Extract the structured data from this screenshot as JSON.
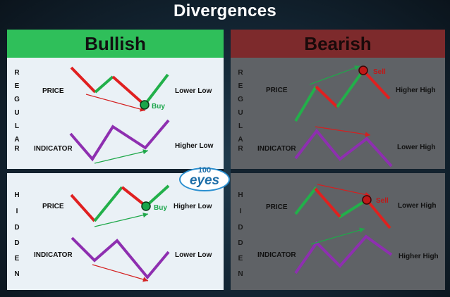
{
  "title": "Divergences",
  "watermark": {
    "number": "100",
    "text": "eyes"
  },
  "bullish": {
    "header": "Bullish",
    "regular": {
      "side_letters": [
        "R",
        "E",
        "G",
        "U",
        "L",
        "A",
        "R"
      ],
      "price_label": "PRICE",
      "indicator_label": "INDICATOR",
      "price_result": "Lower Low",
      "indicator_result": "Higher Low",
      "signal": "Buy"
    },
    "hidden": {
      "side_letters": [
        "H",
        "I",
        "D",
        "D",
        "E",
        "N"
      ],
      "price_label": "PRICE",
      "indicator_label": "INDICATOR",
      "price_result": "Higher Low",
      "indicator_result": "Lower Low",
      "signal": "Buy"
    }
  },
  "bearish": {
    "header": "Bearish",
    "regular": {
      "side_letters": [
        "R",
        "E",
        "G",
        "U",
        "L",
        "A",
        "R"
      ],
      "price_label": "PRICE",
      "indicator_label": "INDICATOR",
      "price_result": "Higher High",
      "indicator_result": "Lower High",
      "signal": "Sell"
    },
    "hidden": {
      "side_letters": [
        "H",
        "I",
        "D",
        "D",
        "E",
        "N"
      ],
      "price_label": "PRICE",
      "indicator_label": "INDICATOR",
      "price_result": "Lower High",
      "indicator_result": "Higher High",
      "signal": "Sell"
    }
  },
  "colors": {
    "up": "#22b04a",
    "down": "#e02020",
    "indicator": "#8e2fb0",
    "buy": "#1aa64a",
    "sell": "#c01818",
    "trend_green": "#1fa84a",
    "trend_red": "#d42020"
  }
}
